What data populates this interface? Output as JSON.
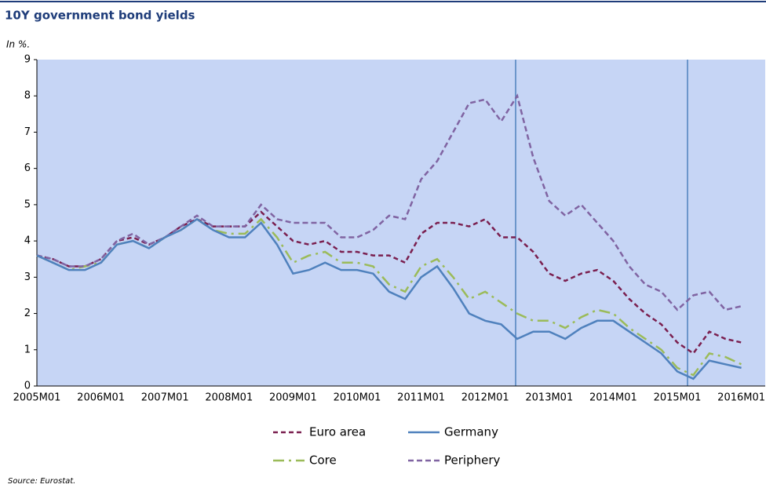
{
  "chart_data": {
    "type": "line",
    "title": "10Y government bond yields",
    "y_label": "In %.",
    "source": "Source: Eurostat.",
    "categories": [
      "2005M01",
      null,
      null,
      null,
      "2006M01",
      null,
      null,
      null,
      "2007M01",
      null,
      null,
      null,
      "2008M01",
      null,
      null,
      null,
      "2009M01",
      null,
      null,
      null,
      "2010M01",
      null,
      null,
      null,
      "2011M01",
      null,
      null,
      null,
      "2012M01",
      null,
      null,
      null,
      "2013M01",
      null,
      null,
      null,
      "2014M01",
      null,
      null,
      null,
      "2015M01",
      null,
      null,
      null,
      "2016M01"
    ],
    "ylim": [
      0,
      9
    ],
    "yticks": [
      0,
      1,
      2,
      3,
      4,
      5,
      6,
      7,
      8,
      9
    ],
    "grid": false,
    "series": [
      {
        "name": "Euro area",
        "color": "#7a1f4f",
        "dash": "6 4",
        "values": [
          3.6,
          3.5,
          3.3,
          3.3,
          3.5,
          4.0,
          4.1,
          3.9,
          4.1,
          4.4,
          4.6,
          4.4,
          4.4,
          4.4,
          4.8,
          4.4,
          4.0,
          3.9,
          4.0,
          3.7,
          3.7,
          3.6,
          3.6,
          3.4,
          4.2,
          4.5,
          4.5,
          4.4,
          4.6,
          4.1,
          4.1,
          3.7,
          3.1,
          2.9,
          3.1,
          3.2,
          2.9,
          2.4,
          2.0,
          1.7,
          1.2,
          0.9,
          1.5,
          1.3,
          1.2
        ]
      },
      {
        "name": "Germany",
        "color": "#4f81bd",
        "dash": "none",
        "values": [
          3.6,
          3.4,
          3.2,
          3.2,
          3.4,
          3.9,
          4.0,
          3.8,
          4.1,
          4.3,
          4.6,
          4.3,
          4.1,
          4.1,
          4.5,
          3.9,
          3.1,
          3.2,
          3.4,
          3.2,
          3.2,
          3.1,
          2.6,
          2.4,
          3.0,
          3.3,
          2.7,
          2.0,
          1.8,
          1.7,
          1.3,
          1.5,
          1.5,
          1.3,
          1.6,
          1.8,
          1.8,
          1.5,
          1.2,
          0.9,
          0.4,
          0.2,
          0.7,
          0.6,
          0.5
        ]
      },
      {
        "name": "Core",
        "color": "#9bbb59",
        "dash": "14 6 3 6",
        "values": [
          3.6,
          3.4,
          3.2,
          3.3,
          3.4,
          3.9,
          4.0,
          3.8,
          4.1,
          4.3,
          4.6,
          4.3,
          4.2,
          4.2,
          4.6,
          4.1,
          3.4,
          3.6,
          3.7,
          3.4,
          3.4,
          3.3,
          2.8,
          2.6,
          3.3,
          3.5,
          3.0,
          2.4,
          2.6,
          2.3,
          2.0,
          1.8,
          1.8,
          1.6,
          1.9,
          2.1,
          2.0,
          1.6,
          1.3,
          1.0,
          0.5,
          0.3,
          0.9,
          0.8,
          0.6
        ]
      },
      {
        "name": "Periphery",
        "color": "#8064a2",
        "dash": "7 4",
        "values": [
          3.6,
          3.5,
          3.3,
          3.3,
          3.5,
          4.0,
          4.2,
          3.9,
          4.1,
          4.4,
          4.7,
          4.4,
          4.4,
          4.4,
          5.0,
          4.6,
          4.5,
          4.5,
          4.5,
          4.1,
          4.1,
          4.3,
          4.7,
          4.6,
          5.7,
          6.2,
          7.0,
          7.8,
          7.9,
          7.3,
          8.0,
          6.3,
          5.1,
          4.7,
          5.0,
          4.5,
          4.0,
          3.3,
          2.8,
          2.6,
          2.1,
          2.5,
          2.6,
          2.1,
          2.2
        ]
      }
    ]
  }
}
